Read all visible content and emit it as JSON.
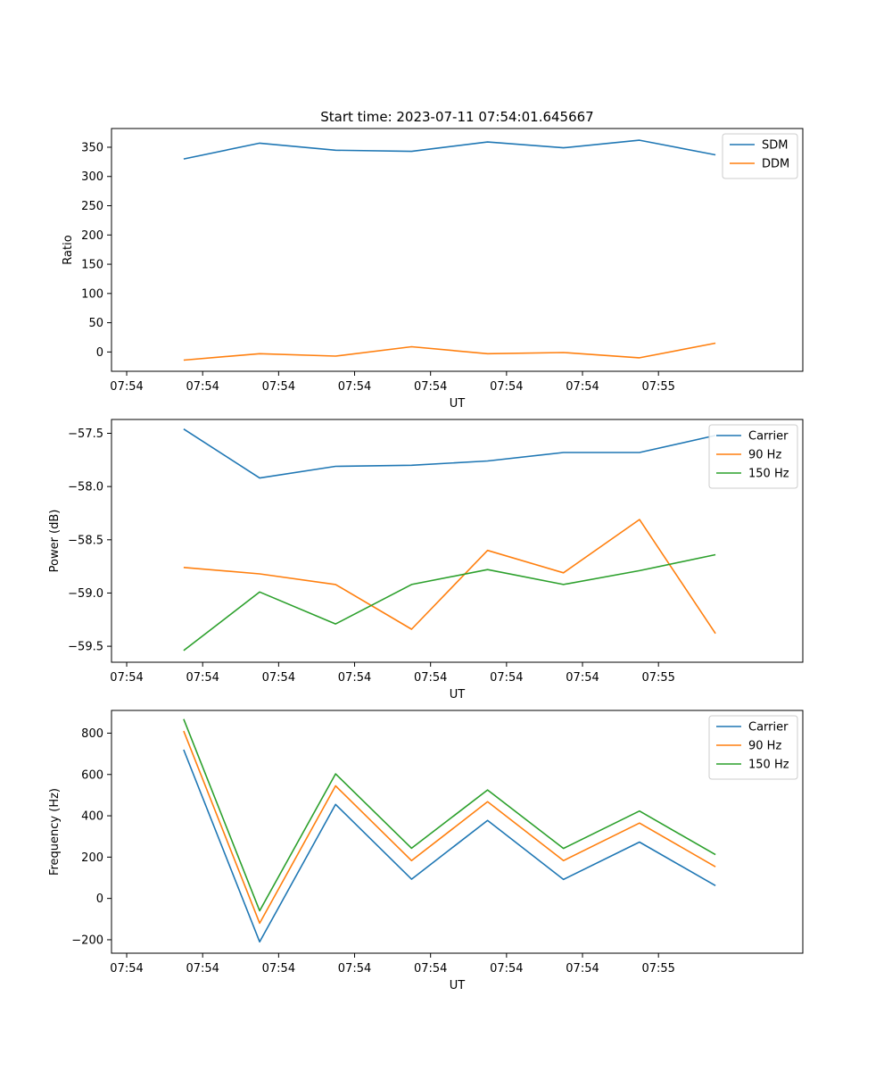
{
  "chart_data": [
    {
      "type": "line",
      "title": "Start time: 2023-07-11 07:54:01.645667",
      "xlabel": "UT",
      "ylabel": "Ratio",
      "xticklabels": [
        "07:54",
        "07:54",
        "07:54",
        "07:54",
        "07:54",
        "07:54",
        "07:54",
        "07:55"
      ],
      "xlim": [
        -0.2,
        8.9
      ],
      "ylim": [
        -33,
        382
      ],
      "yticks": [
        0,
        50,
        100,
        150,
        200,
        250,
        300,
        350
      ],
      "legend_position": "top-right",
      "x": [
        0.75,
        1.75,
        2.75,
        3.75,
        4.75,
        5.75,
        6.75,
        7.75
      ],
      "series": [
        {
          "name": "SDM",
          "color": "#1f77b4",
          "values": [
            330,
            357,
            345,
            343,
            359,
            349,
            362,
            337
          ]
        },
        {
          "name": "DDM",
          "color": "#ff7f0e",
          "values": [
            -14,
            -3,
            -7,
            9,
            -3,
            -1,
            -10,
            15
          ]
        }
      ]
    },
    {
      "type": "line",
      "title": "",
      "xlabel": "UT",
      "ylabel": "Power (dB)",
      "xticklabels": [
        "07:54",
        "07:54",
        "07:54",
        "07:54",
        "07:54",
        "07:54",
        "07:54",
        "07:55"
      ],
      "xlim": [
        -0.2,
        8.9
      ],
      "ylim": [
        -59.65,
        -57.37
      ],
      "yticks": [
        -59.5,
        -59.0,
        -58.5,
        -58.0,
        -57.5
      ],
      "yticklabels": [
        "−59.5",
        "−59.0",
        "−58.5",
        "−58.0",
        "−57.5"
      ],
      "legend_position": "top-right",
      "x": [
        0.75,
        1.75,
        2.75,
        3.75,
        4.75,
        5.75,
        6.75,
        7.75
      ],
      "series": [
        {
          "name": "Carrier",
          "color": "#1f77b4",
          "values": [
            -57.46,
            -57.92,
            -57.81,
            -57.8,
            -57.76,
            -57.68,
            -57.68,
            -57.52
          ]
        },
        {
          "name": "90 Hz",
          "color": "#ff7f0e",
          "values": [
            -58.76,
            -58.82,
            -58.92,
            -59.34,
            -58.6,
            -58.81,
            -58.31,
            -59.38
          ]
        },
        {
          "name": "150 Hz",
          "color": "#2ca02c",
          "values": [
            -59.54,
            -58.99,
            -59.29,
            -58.92,
            -58.78,
            -58.92,
            -58.79,
            -58.64
          ]
        }
      ]
    },
    {
      "type": "line",
      "title": "",
      "xlabel": "UT",
      "ylabel": "Frequency (Hz)",
      "xticklabels": [
        "07:54",
        "07:54",
        "07:54",
        "07:54",
        "07:54",
        "07:54",
        "07:54",
        "07:55"
      ],
      "xlim": [
        -0.2,
        8.9
      ],
      "ylim": [
        -265,
        910
      ],
      "yticks": [
        -200,
        0,
        200,
        400,
        600,
        800
      ],
      "yticklabels": [
        "−200",
        "0",
        "200",
        "400",
        "600",
        "800"
      ],
      "legend_position": "top-right",
      "x": [
        0.75,
        1.75,
        2.75,
        3.75,
        4.75,
        5.75,
        6.75,
        7.75
      ],
      "series": [
        {
          "name": "Carrier",
          "color": "#1f77b4",
          "values": [
            720,
            -210,
            455,
            93,
            378,
            92,
            273,
            62
          ]
        },
        {
          "name": "90 Hz",
          "color": "#ff7f0e",
          "values": [
            810,
            -120,
            545,
            183,
            468,
            183,
            365,
            153
          ]
        },
        {
          "name": "150 Hz",
          "color": "#2ca02c",
          "values": [
            868,
            -60,
            603,
            243,
            525,
            242,
            423,
            212
          ]
        }
      ]
    }
  ]
}
